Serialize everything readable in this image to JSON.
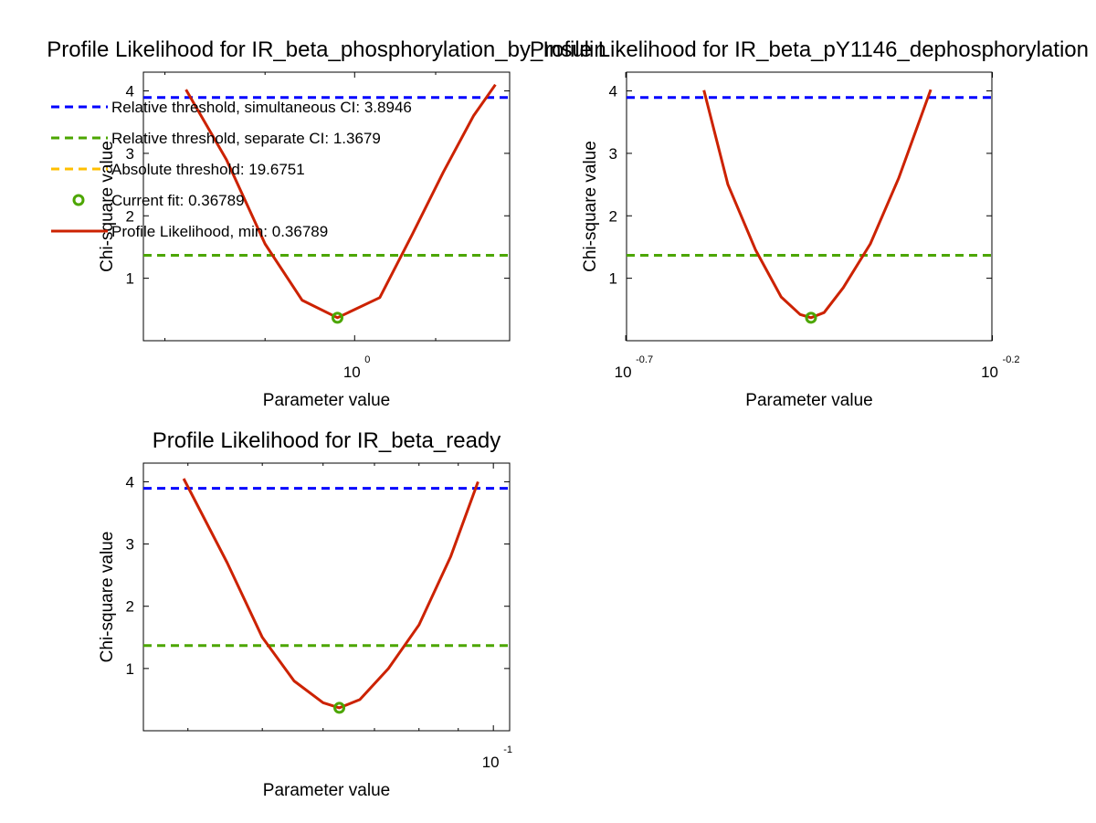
{
  "colors": {
    "simultaneous": "#0000ff",
    "separate": "#4ca600",
    "absolute": "#ffbf00",
    "current_fit": "#4ca600",
    "profile": "#cc2200"
  },
  "legend": {
    "items": [
      {
        "key": "simultaneous",
        "style": "dashed",
        "label": "Relative threshold, simultaneous CI: 3.8946"
      },
      {
        "key": "separate",
        "style": "dashed",
        "label": "Relative threshold, separate CI: 1.3679"
      },
      {
        "key": "absolute",
        "style": "dashed",
        "label": "Absolute threshold: 19.6751"
      },
      {
        "key": "current_fit",
        "style": "marker",
        "label": "Current fit: 0.36789"
      },
      {
        "key": "profile",
        "style": "solid",
        "label": "Profile Likelihood, min: 0.36789"
      }
    ]
  },
  "chart_data": [
    {
      "type": "line",
      "title": "Profile Likelihood for IR_beta_phosphorylation_by_Insulin",
      "xlabel": "Parameter value",
      "ylabel": "Chi-square value",
      "xscale": "log",
      "xlim": [
        0.78,
        1.2
      ],
      "ylim": [
        0.0,
        4.3
      ],
      "yticks": [
        1,
        2,
        3,
        4
      ],
      "xticks": [
        {
          "base": "10",
          "exp": "0",
          "value": 1.0
        }
      ],
      "x_minor_ticks": [
        0.8,
        0.9,
        1.1,
        1.2
      ],
      "thresholds": {
        "simultaneous": 3.8946,
        "separate": 1.3679
      },
      "current_fit": {
        "x": 0.98,
        "y": 0.36789
      },
      "profile": {
        "x": [
          0.82,
          0.86,
          0.9,
          0.94,
          0.98,
          1.03,
          1.07,
          1.11,
          1.15,
          1.18
        ],
        "y": [
          4.02,
          2.9,
          1.55,
          0.65,
          0.36789,
          0.69,
          1.7,
          2.7,
          3.6,
          4.1
        ]
      },
      "legend": "top-left"
    },
    {
      "type": "line",
      "title": "Profile Likelihood for IR_beta_pY1146_dephosphorylation",
      "xlabel": "Parameter value",
      "ylabel": "Chi-square value",
      "xscale": "log",
      "xlim": [
        0.2,
        0.63
      ],
      "ylim": [
        0.0,
        4.3
      ],
      "yticks": [
        1,
        2,
        3,
        4
      ],
      "xticks": [
        {
          "base": "10",
          "exp": "-0.7",
          "value": 0.1995
        },
        {
          "base": "10",
          "exp": "-0.2",
          "value": 0.631
        }
      ],
      "thresholds": {
        "simultaneous": 3.8946,
        "separate": 1.3679
      },
      "current_fit": {
        "x": 0.357,
        "y": 0.36789
      },
      "profile": {
        "x": [
          0.255,
          0.275,
          0.3,
          0.325,
          0.345,
          0.357,
          0.372,
          0.395,
          0.43,
          0.47,
          0.52
        ],
        "y": [
          4.01,
          2.5,
          1.45,
          0.7,
          0.42,
          0.36789,
          0.45,
          0.85,
          1.55,
          2.6,
          4.02
        ]
      }
    },
    {
      "type": "line",
      "title": "Profile Likelihood for IR_beta_ready",
      "xlabel": "Parameter value",
      "ylabel": "Chi-square value",
      "xscale": "log",
      "xlim": [
        0.035,
        0.105
      ],
      "ylim": [
        0.0,
        4.3
      ],
      "yticks": [
        1,
        2,
        3,
        4
      ],
      "xticks": [
        {
          "base": "10",
          "exp": "-1",
          "value": 0.1
        }
      ],
      "x_minor_ticks": [
        0.04,
        0.05,
        0.06,
        0.07,
        0.08,
        0.09
      ],
      "thresholds": {
        "simultaneous": 3.8946,
        "separate": 1.3679
      },
      "current_fit": {
        "x": 0.063,
        "y": 0.36789
      },
      "profile": {
        "x": [
          0.0395,
          0.045,
          0.05,
          0.055,
          0.06,
          0.063,
          0.067,
          0.073,
          0.08,
          0.088,
          0.0955
        ],
        "y": [
          4.05,
          2.7,
          1.5,
          0.8,
          0.45,
          0.36789,
          0.5,
          1.0,
          1.7,
          2.8,
          4.0
        ]
      }
    }
  ]
}
